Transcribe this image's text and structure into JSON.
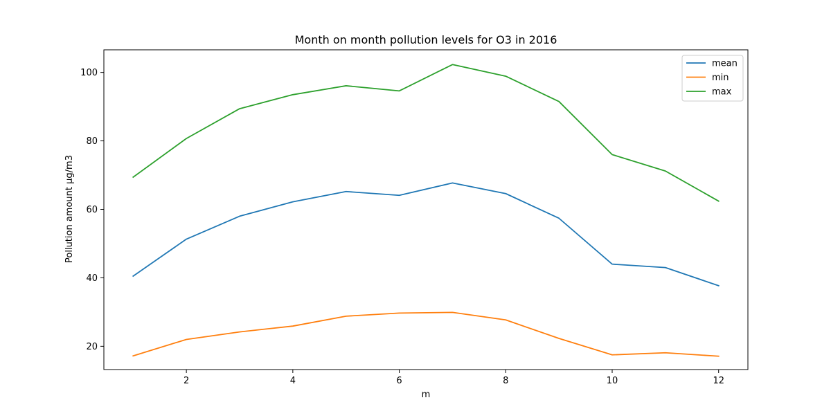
{
  "chart_data": {
    "type": "line",
    "title": "Month on month pollution levels for O3 in 2016",
    "xlabel": "m",
    "ylabel": "Pollution amount µg/m3",
    "x": [
      1,
      2,
      3,
      4,
      5,
      6,
      7,
      8,
      9,
      10,
      11,
      12
    ],
    "xlim": [
      0.45,
      12.55
    ],
    "ylim": [
      13.2,
      106.6
    ],
    "xticks": [
      2,
      4,
      6,
      8,
      10,
      12
    ],
    "yticks": [
      20,
      40,
      60,
      80,
      100
    ],
    "grid": false,
    "legend_position": "top-right",
    "series": [
      {
        "name": "mean",
        "color": "#1f77b4",
        "values": [
          40.5,
          51.3,
          58.0,
          62.2,
          65.2,
          64.1,
          67.7,
          64.6,
          57.4,
          44.0,
          43.0,
          37.7
        ]
      },
      {
        "name": "min",
        "color": "#ff7f0e",
        "values": [
          17.2,
          22.0,
          24.2,
          25.9,
          28.8,
          29.7,
          29.9,
          27.7,
          22.3,
          17.5,
          18.1,
          17.1
        ]
      },
      {
        "name": "max",
        "color": "#2ca02c",
        "values": [
          69.4,
          80.7,
          89.4,
          93.5,
          96.1,
          94.6,
          102.3,
          98.9,
          91.5,
          76.0,
          71.2,
          62.4
        ]
      }
    ]
  }
}
